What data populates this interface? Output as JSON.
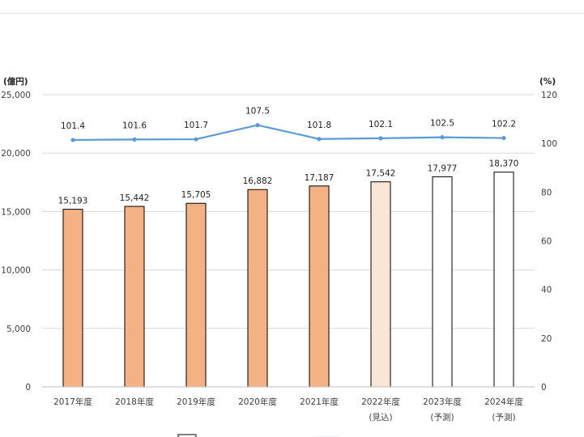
{
  "chart_data": {
    "type": "bar",
    "y_left_unit": "(億円)",
    "y_right_unit": "(%)",
    "y_left_ticks": [
      "0",
      "5,000",
      "10,000",
      "15,000",
      "20,000",
      "25,000"
    ],
    "y_right_ticks": [
      "0",
      "20",
      "40",
      "60",
      "80",
      "100",
      "120"
    ],
    "y_left_lim": [
      0,
      25000
    ],
    "y_right_lim": [
      0,
      120
    ],
    "categories": [
      {
        "line1": "2017年度",
        "line2": ""
      },
      {
        "line1": "2018年度",
        "line2": ""
      },
      {
        "line1": "2019年度",
        "line2": ""
      },
      {
        "line1": "2020年度",
        "line2": ""
      },
      {
        "line1": "2021年度",
        "line2": ""
      },
      {
        "line1": "2022年度",
        "line2": "(見込)"
      },
      {
        "line1": "2023年度",
        "line2": "(予測)"
      },
      {
        "line1": "2024年度",
        "line2": "(予測)"
      }
    ],
    "series": [
      {
        "kind": "bar",
        "axis": "left",
        "values": [
          15193,
          15442,
          15705,
          16882,
          17187,
          17542,
          17977,
          18370
        ],
        "labels": [
          "15,193",
          "15,442",
          "15,705",
          "16,882",
          "17,187",
          "17,542",
          "17,977",
          "18,370"
        ],
        "fill_colors": [
          "#f4b183",
          "#f4b183",
          "#f4b183",
          "#f4b183",
          "#f4b183",
          "#fbe5d6",
          "#ffffff",
          "#ffffff"
        ]
      },
      {
        "kind": "line",
        "axis": "right",
        "values": [
          101.4,
          101.6,
          101.7,
          107.5,
          101.8,
          102.1,
          102.5,
          102.2
        ],
        "labels": [
          "101.4",
          "101.6",
          "101.7",
          "107.5",
          "101.8",
          "102.1",
          "102.5",
          "102.2"
        ],
        "color": "#5b9bd5"
      }
    ],
    "grid": true
  }
}
